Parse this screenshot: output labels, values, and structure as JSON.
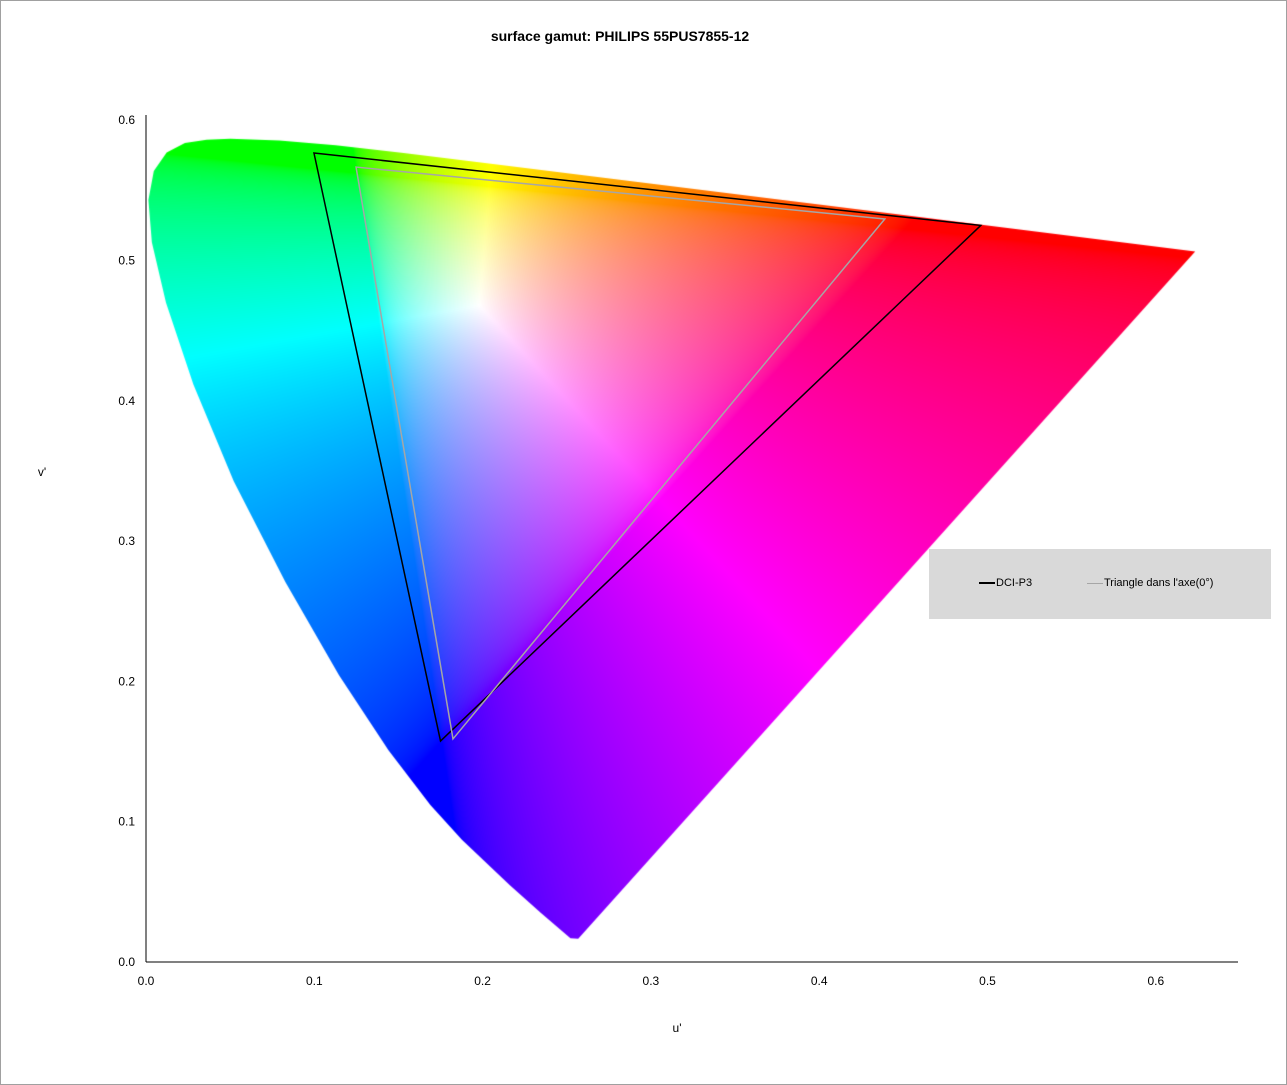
{
  "chart_data": {
    "type": "scatter",
    "title": "surface gamut: PHILIPS  55PUS7855-12",
    "xlabel": "u'",
    "ylabel": "v'",
    "xlim": [
      0.0,
      0.65
    ],
    "ylim": [
      0.0,
      0.603
    ],
    "xticks": [
      "0.0",
      "0.1",
      "0.2",
      "0.3",
      "0.4",
      "0.5",
      "0.6"
    ],
    "yticks": [
      "0.0",
      "0.1",
      "0.2",
      "0.3",
      "0.4",
      "0.5",
      "0.6"
    ],
    "grid": false,
    "background": "CIE 1976 u'v' spectral locus filled with chromaticity colors",
    "legend_position": "right",
    "series": [
      {
        "name": "DCI-P3",
        "color": "#000000",
        "points": [
          [
            0.0998,
            0.5766
          ],
          [
            0.496,
            0.525
          ],
          [
            0.175,
            0.1575
          ]
        ]
      },
      {
        "name": "Triangle dans l'axe(0°)",
        "color": "#a6a6a6",
        "points": [
          [
            0.1248,
            0.5666
          ],
          [
            0.439,
            0.5296
          ],
          [
            0.1824,
            0.159
          ]
        ]
      }
    ]
  }
}
